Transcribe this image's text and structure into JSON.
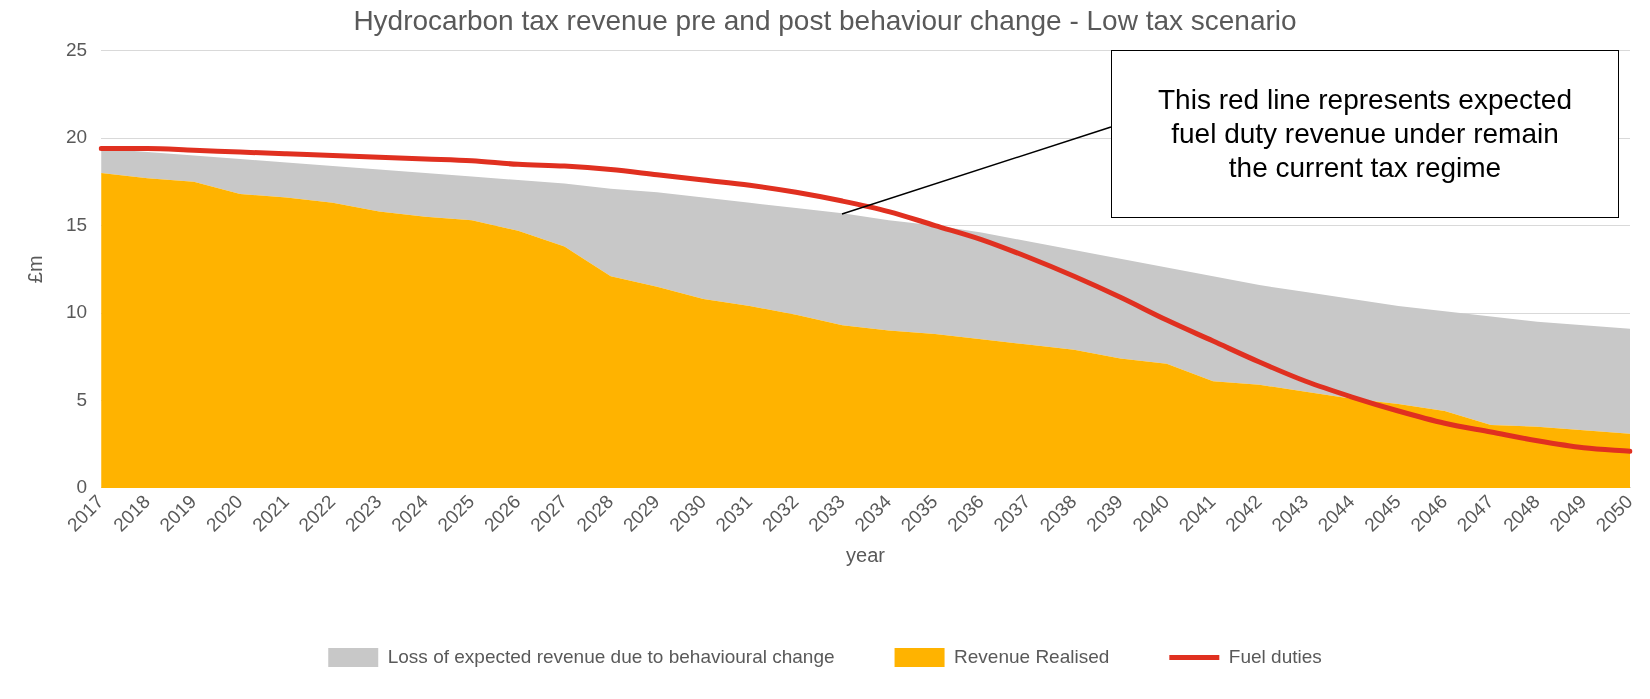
{
  "chart_data": {
    "type": "area",
    "title": "Hydrocarbon tax revenue pre and post behaviour change - Low tax scenario",
    "xlabel": "year",
    "ylabel": "£m",
    "categories": [
      "2017",
      "2018",
      "2019",
      "2020",
      "2021",
      "2022",
      "2023",
      "2024",
      "2025",
      "2026",
      "2027",
      "2028",
      "2029",
      "2030",
      "2031",
      "2032",
      "2033",
      "2034",
      "2035",
      "2036",
      "2037",
      "2038",
      "2039",
      "2040",
      "2041",
      "2042",
      "2043",
      "2044",
      "2045",
      "2046",
      "2047",
      "2048",
      "2049",
      "2050"
    ],
    "series": [
      {
        "name": "Revenue Realised",
        "type": "area",
        "color": "#ffb300",
        "values": [
          18.0,
          17.7,
          17.5,
          16.8,
          16.6,
          16.3,
          15.8,
          15.5,
          15.3,
          14.7,
          13.8,
          12.1,
          11.5,
          10.8,
          10.4,
          9.9,
          9.3,
          9.0,
          8.8,
          8.5,
          8.2,
          7.9,
          7.4,
          7.1,
          6.1,
          5.9,
          5.5,
          5.1,
          4.8,
          4.4,
          3.6,
          3.5,
          3.3,
          3.1
        ]
      },
      {
        "name": "Loss of expected revenue due to behavioural change",
        "type": "area",
        "color": "#c8c8c8",
        "values": [
          1.4,
          1.5,
          1.5,
          2.0,
          2.0,
          2.1,
          2.4,
          2.5,
          2.5,
          2.9,
          3.6,
          5.0,
          5.4,
          5.8,
          5.9,
          6.1,
          6.4,
          6.3,
          6.2,
          6.1,
          5.9,
          5.7,
          5.7,
          5.5,
          6.0,
          5.7,
          5.7,
          5.7,
          5.6,
          5.7,
          6.2,
          6.0,
          6.0,
          6.0
        ]
      },
      {
        "name": "Fuel duties",
        "type": "line",
        "color": "#e03020",
        "values": [
          19.4,
          19.4,
          19.3,
          19.2,
          19.1,
          19.0,
          18.9,
          18.8,
          18.7,
          18.5,
          18.4,
          18.2,
          17.9,
          17.6,
          17.3,
          16.9,
          16.4,
          15.8,
          15.0,
          14.2,
          13.2,
          12.1,
          10.9,
          9.6,
          8.4,
          7.2,
          6.1,
          5.2,
          4.4,
          3.7,
          3.2,
          2.7,
          2.3,
          2.1
        ]
      }
    ],
    "stacked": true,
    "ylim": [
      0,
      25
    ],
    "yticks": [
      0,
      5,
      10,
      15,
      20,
      25
    ],
    "grid": "y",
    "legend": "bottom",
    "marker": "none",
    "line_style": "solid",
    "annotations": [
      "This red line represents expected fuel duty revenue under remain the current tax regime"
    ]
  }
}
